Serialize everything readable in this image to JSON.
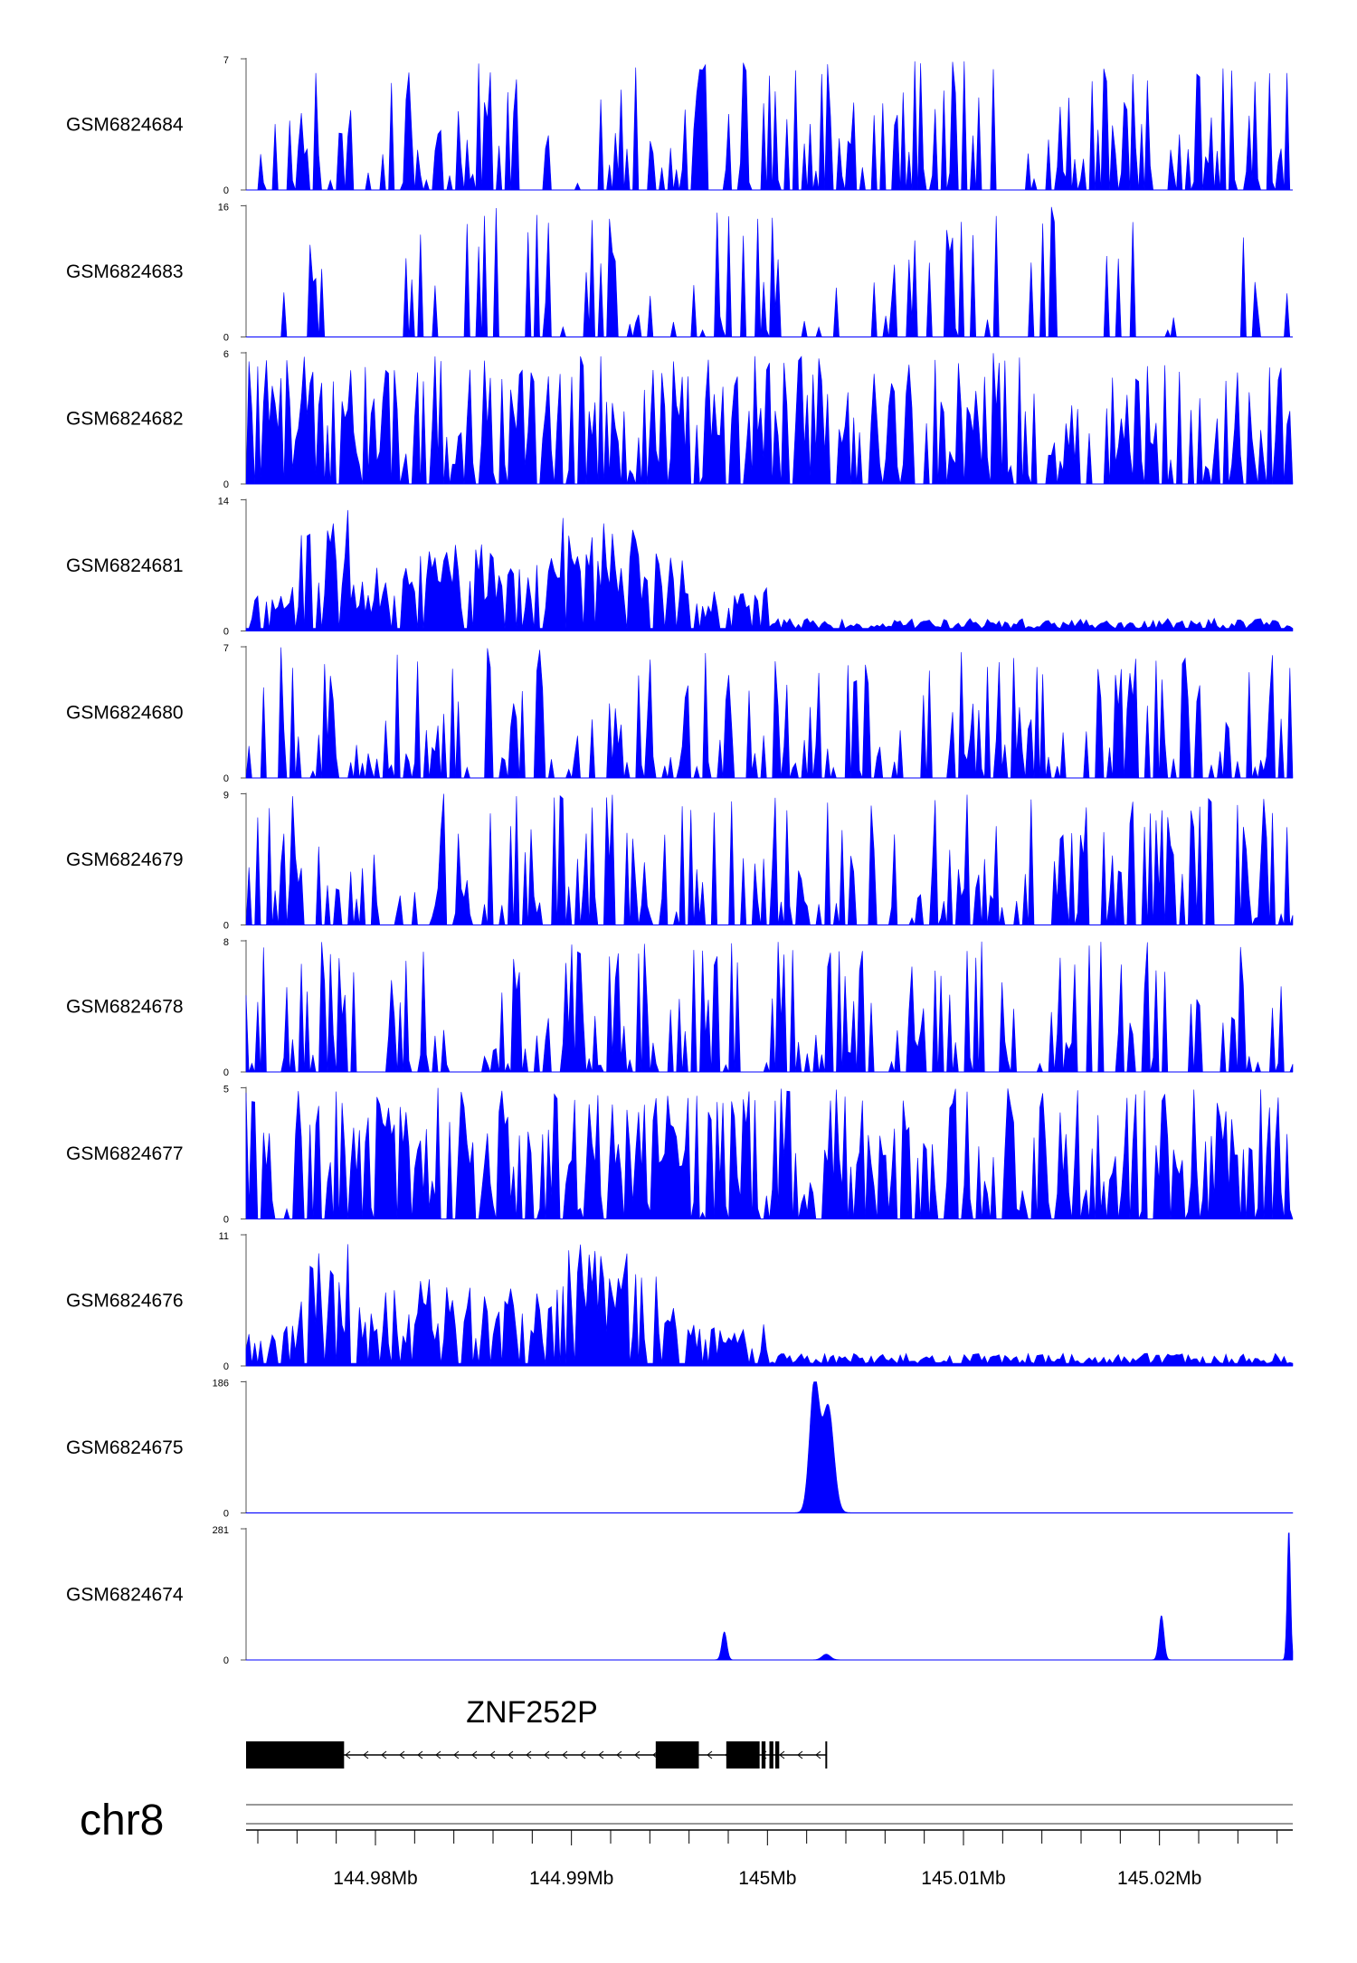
{
  "chart_data": {
    "type": "area",
    "color": "#0000ff",
    "chromosome": "chr8",
    "x_range_mb": [
      144.9734,
      145.0268
    ],
    "tracks": [
      {
        "name": "GSM6824684",
        "ymax": 7,
        "ymin": 0,
        "profile": "sparse"
      },
      {
        "name": "GSM6824683",
        "ymax": 16,
        "ymin": 0,
        "profile": "very-sparse"
      },
      {
        "name": "GSM6824682",
        "ymax": 6,
        "ymin": 0,
        "profile": "dense"
      },
      {
        "name": "GSM6824681",
        "ymax": 14,
        "ymin": 0,
        "profile": "broad-left"
      },
      {
        "name": "GSM6824680",
        "ymax": 7,
        "ymin": 0,
        "profile": "sparse"
      },
      {
        "name": "GSM6824679",
        "ymax": 9,
        "ymin": 0,
        "profile": "sparse"
      },
      {
        "name": "GSM6824678",
        "ymax": 8,
        "ymin": 0,
        "profile": "sparse"
      },
      {
        "name": "GSM6824677",
        "ymax": 5,
        "ymin": 0,
        "profile": "dense"
      },
      {
        "name": "GSM6824676",
        "ymax": 11,
        "ymin": 0,
        "profile": "broad-left"
      },
      {
        "name": "GSM6824675",
        "ymax": 186,
        "ymin": 0,
        "peaks": [
          {
            "x": 145.0024,
            "y": 186,
            "width": 0.00035
          },
          {
            "x": 145.0031,
            "y": 150,
            "width": 0.0004
          }
        ]
      },
      {
        "name": "GSM6824674",
        "ymax": 281,
        "ymin": 0,
        "peaks": [
          {
            "x": 144.9978,
            "y": 60,
            "width": 0.00018
          },
          {
            "x": 145.003,
            "y": 12,
            "width": 0.0003
          },
          {
            "x": 145.0201,
            "y": 95,
            "width": 0.00018
          },
          {
            "x": 145.0266,
            "y": 281,
            "width": 0.00012
          }
        ]
      }
    ],
    "gene": {
      "name": "ZNF252P",
      "start_mb": 144.9734,
      "end_mb": 145.003,
      "strand": "-",
      "exons_mb": [
        [
          144.9734,
          144.9784
        ],
        [
          144.9943,
          144.9965
        ],
        [
          144.9979,
          144.9996
        ],
        [
          144.9997,
          144.9999
        ],
        [
          145.0001,
          145.0003
        ],
        [
          145.0004,
          145.0006
        ]
      ]
    },
    "x_axis": {
      "tick_labels": [
        "144.98Mb",
        "144.99Mb",
        "145Mb",
        "145.01Mb",
        "145.02Mb"
      ],
      "tick_values": [
        144.98,
        144.99,
        145.0,
        145.01,
        145.02
      ],
      "minor_tick_step_mb": 0.002
    }
  }
}
